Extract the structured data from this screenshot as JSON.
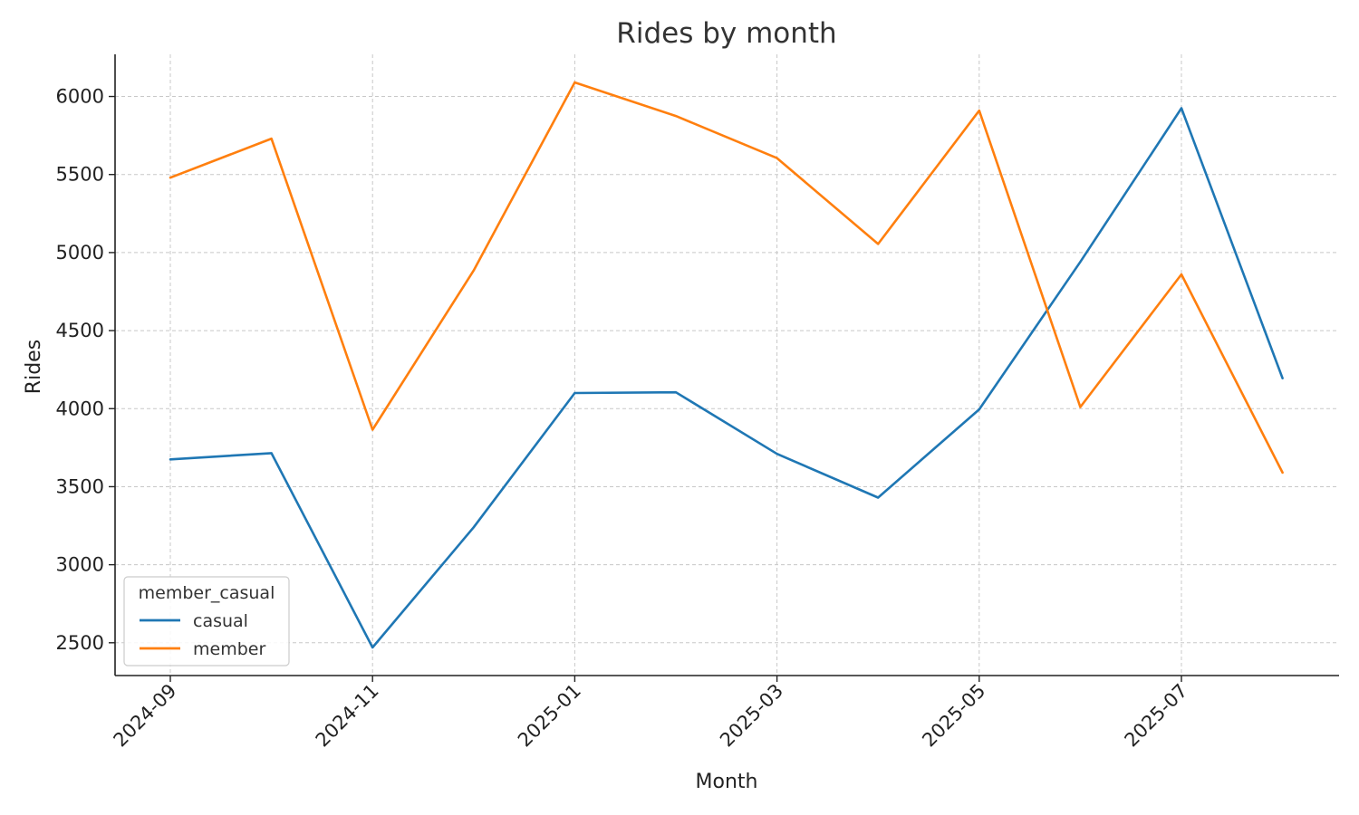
{
  "chart_data": {
    "type": "line",
    "title": "Rides by month",
    "xlabel": "Month",
    "ylabel": "Rides",
    "x": [
      "2024-09",
      "2024-10",
      "2024-11",
      "2024-12",
      "2025-01",
      "2025-02",
      "2025-03",
      "2025-04",
      "2025-05",
      "2025-06",
      "2025-07",
      "2025-08"
    ],
    "x_tick_labels": [
      "2024-09",
      "2024-11",
      "2025-01",
      "2025-03",
      "2025-05",
      "2025-07"
    ],
    "y_ticks": [
      2500,
      3000,
      3500,
      4000,
      4500,
      5000,
      5500,
      6000
    ],
    "ylim": [
      2290,
      6270
    ],
    "grid": true,
    "legend": {
      "title": "member_casual",
      "placement": "lower-left"
    },
    "series": [
      {
        "name": "casual",
        "color": "#1f77b4",
        "values": [
          3675,
          3715,
          2470,
          3240,
          4100,
          4105,
          3710,
          3430,
          3995,
          4940,
          5925,
          4195
        ]
      },
      {
        "name": "member",
        "color": "#ff7f0e",
        "values": [
          5480,
          5730,
          3865,
          4885,
          6090,
          5875,
          5605,
          5055,
          5910,
          4010,
          4860,
          3590
        ]
      }
    ]
  }
}
